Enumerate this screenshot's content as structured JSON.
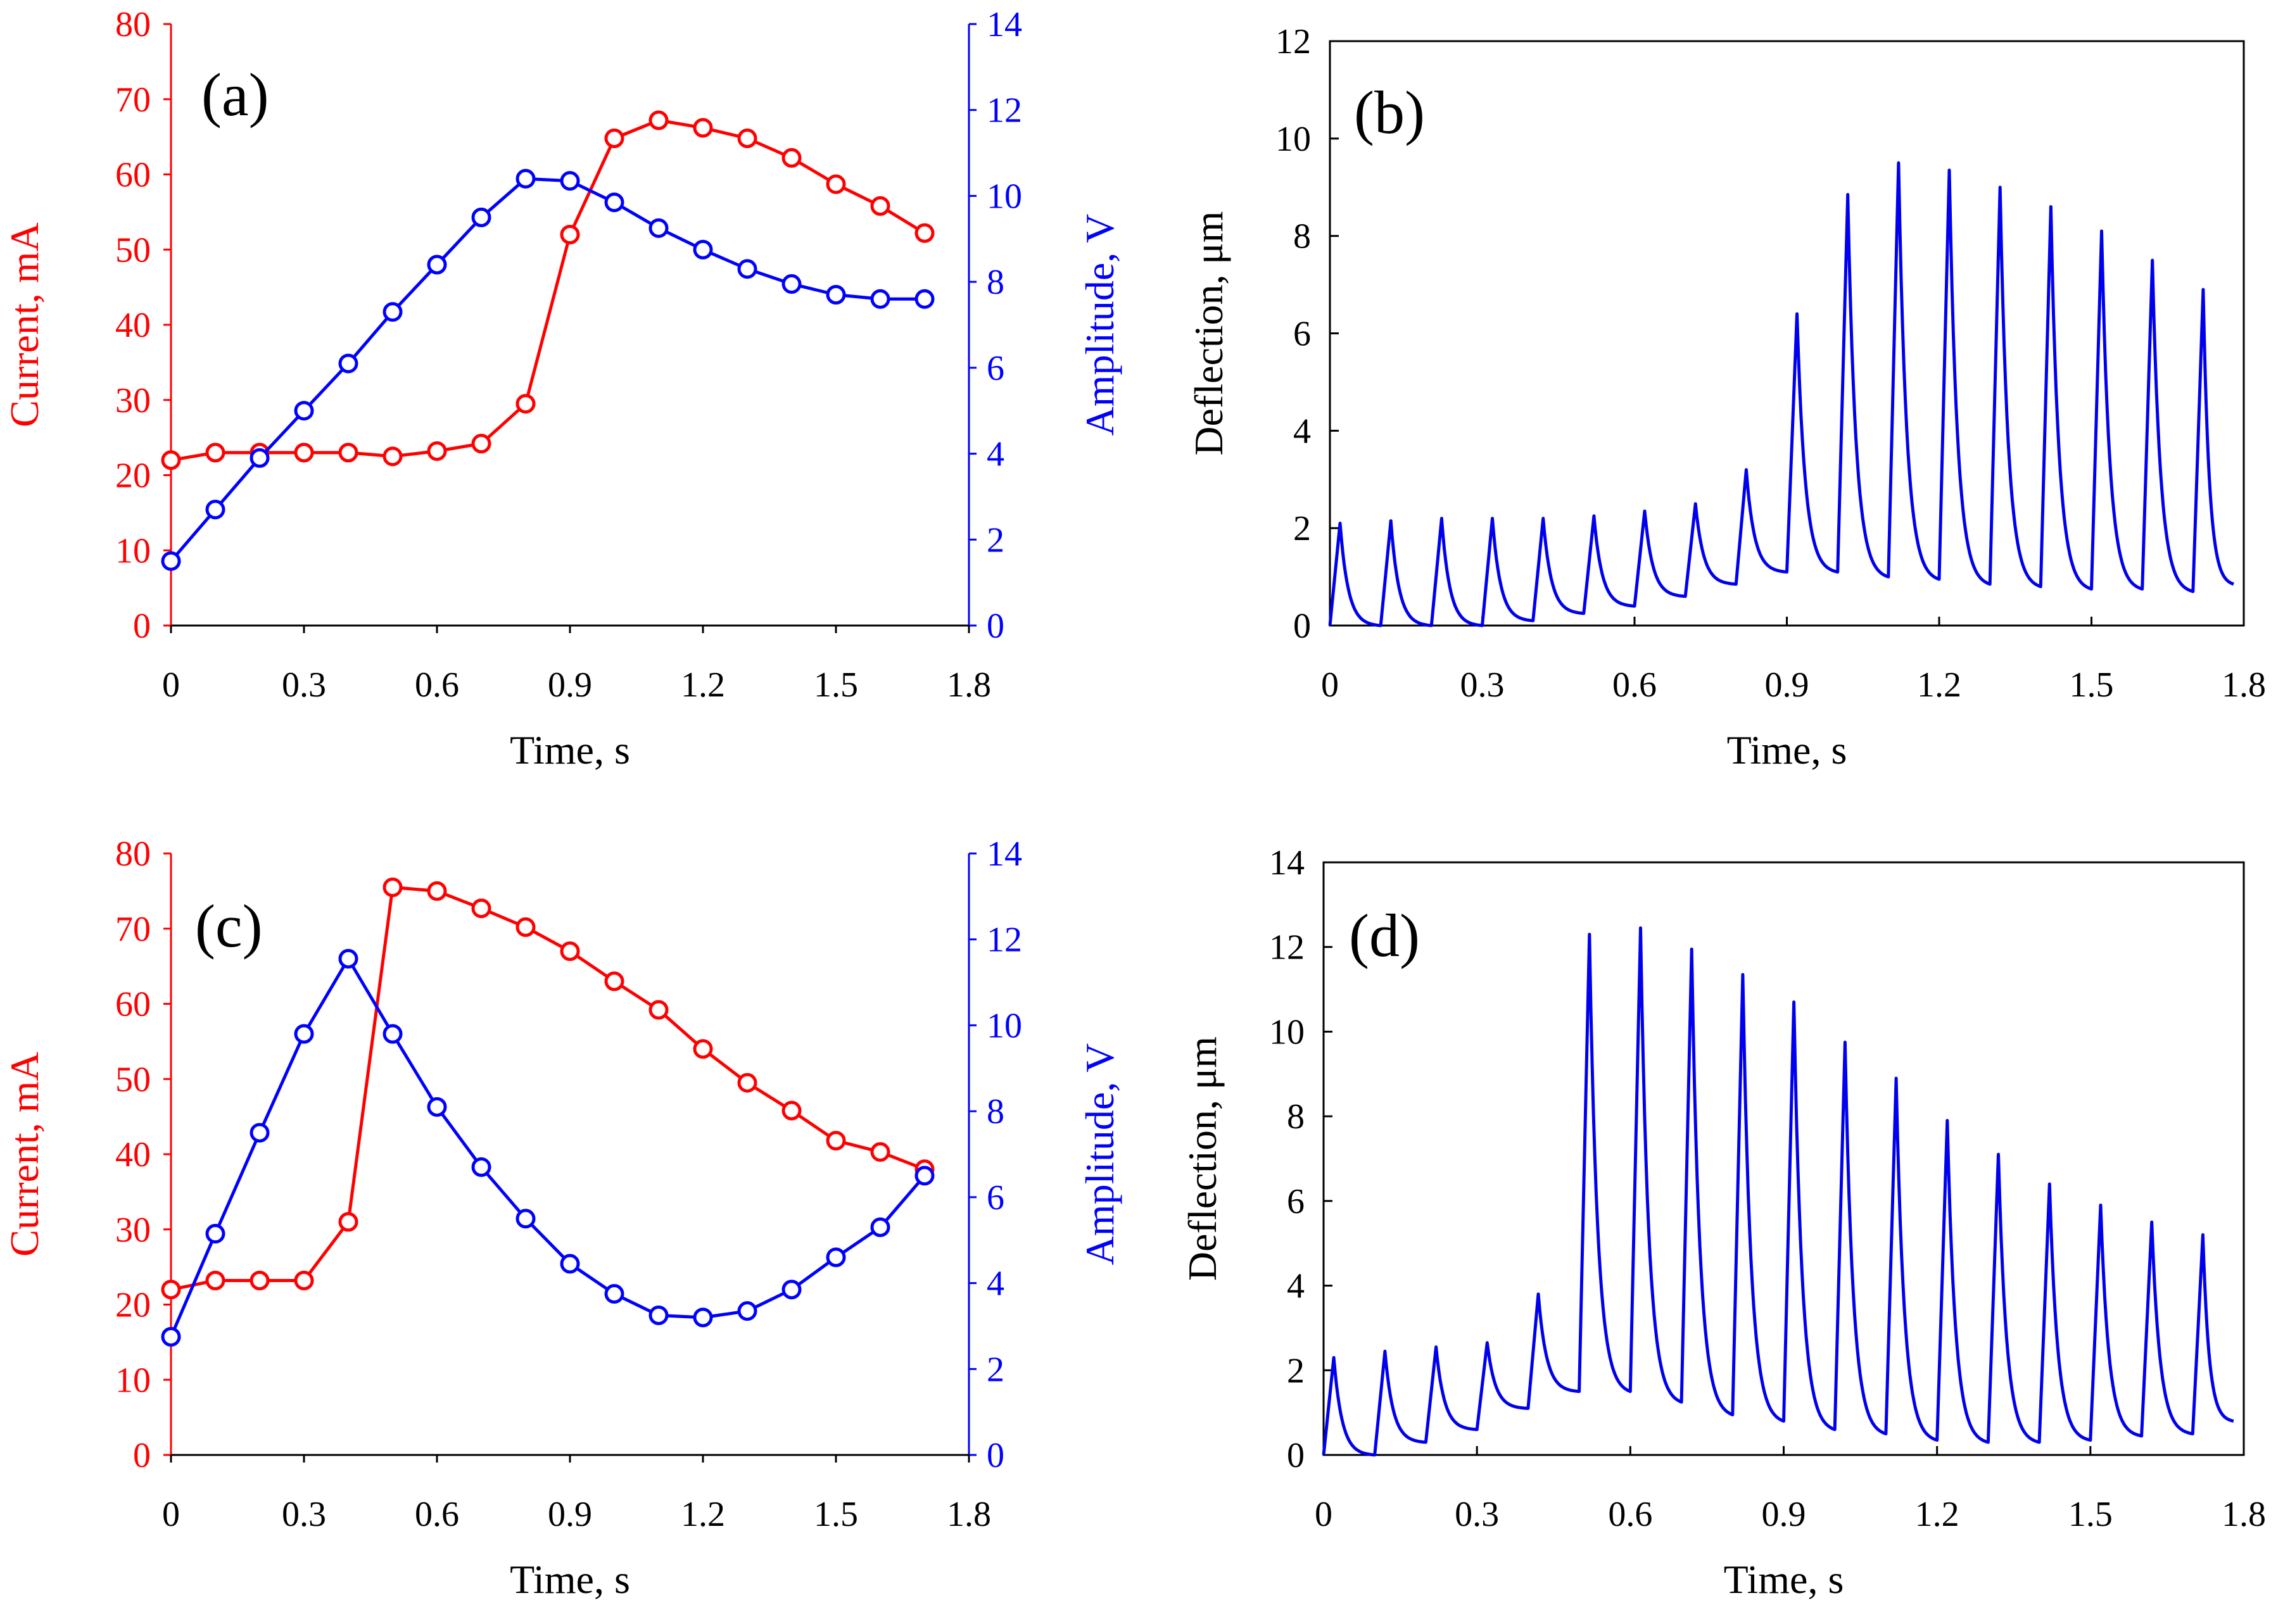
{
  "figure": {
    "panel_labels": [
      "(a)",
      "(b)",
      "(c)",
      "(d)"
    ]
  },
  "colors": {
    "current": "#ff0000",
    "amplitude": "#0000ff",
    "deflection": "#0000ee",
    "axis": "#000000"
  },
  "chart_data": [
    {
      "id": "a",
      "type": "line",
      "title": "(a)",
      "xlabel": "Time, s",
      "ylabel_left": "Current, mA",
      "ylabel_right": "Amplitude, V",
      "xlim": [
        0,
        1.8
      ],
      "ylim_left": [
        0,
        80
      ],
      "ylim_right": [
        0,
        14
      ],
      "x_ticks": [
        "0",
        "0.3",
        "0.6",
        "0.9",
        "1.2",
        "1.5",
        "1.8"
      ],
      "y_left_ticks": [
        "0",
        "10",
        "20",
        "30",
        "40",
        "50",
        "60",
        "70",
        "80"
      ],
      "y_right_ticks": [
        "0",
        "2",
        "4",
        "6",
        "8",
        "10",
        "12",
        "14"
      ],
      "x": [
        0,
        0.1,
        0.2,
        0.3,
        0.4,
        0.5,
        0.6,
        0.7,
        0.8,
        0.9,
        1.0,
        1.1,
        1.2,
        1.3,
        1.4,
        1.5,
        1.6,
        1.7
      ],
      "series": [
        {
          "name": "Current, mA",
          "axis": "left",
          "marker": "circle",
          "values": [
            22,
            23,
            23,
            23,
            23,
            22.5,
            23.2,
            24.2,
            29.5,
            52,
            64.8,
            67.2,
            66.2,
            64.8,
            62.2,
            58.7,
            55.8,
            52.2
          ]
        },
        {
          "name": "Amplitude, V",
          "axis": "right",
          "marker": "circle",
          "values": [
            1.5,
            2.7,
            3.9,
            5.0,
            6.1,
            7.3,
            8.4,
            9.5,
            10.4,
            10.35,
            9.85,
            9.25,
            8.75,
            8.3,
            7.95,
            7.7,
            7.6,
            7.6
          ]
        }
      ]
    },
    {
      "id": "b",
      "type": "line",
      "title": "(b)",
      "xlabel": "Time, s",
      "ylabel": "Deflection, μm",
      "xlim": [
        0,
        1.8
      ],
      "ylim": [
        0,
        12
      ],
      "x_ticks": [
        "0",
        "0.3",
        "0.6",
        "0.9",
        "1.2",
        "1.5",
        "1.8"
      ],
      "y_ticks": [
        "0",
        "2",
        "4",
        "6",
        "8",
        "10",
        "12"
      ],
      "pulse_period": 0.1,
      "rise_time": 0.02,
      "x_end": 1.78,
      "pulses": [
        {
          "start": 0.0,
          "base": 0.0,
          "peak": 2.1,
          "end": 0.0
        },
        {
          "start": 0.1,
          "base": 0.0,
          "peak": 2.15,
          "end": 0.0
        },
        {
          "start": 0.2,
          "base": 0.0,
          "peak": 2.2,
          "end": 0.0
        },
        {
          "start": 0.3,
          "base": 0.0,
          "peak": 2.2,
          "end": 0.1
        },
        {
          "start": 0.4,
          "base": 0.1,
          "peak": 2.2,
          "end": 0.25
        },
        {
          "start": 0.5,
          "base": 0.25,
          "peak": 2.25,
          "end": 0.4
        },
        {
          "start": 0.6,
          "base": 0.4,
          "peak": 2.35,
          "end": 0.6
        },
        {
          "start": 0.7,
          "base": 0.6,
          "peak": 2.5,
          "end": 0.85
        },
        {
          "start": 0.8,
          "base": 0.85,
          "peak": 3.2,
          "end": 1.1
        },
        {
          "start": 0.9,
          "base": 1.1,
          "peak": 6.4,
          "end": 1.1
        },
        {
          "start": 1.0,
          "base": 1.1,
          "peak": 8.85,
          "end": 1.0
        },
        {
          "start": 1.1,
          "base": 1.0,
          "peak": 9.5,
          "end": 0.95
        },
        {
          "start": 1.2,
          "base": 0.95,
          "peak": 9.35,
          "end": 0.85
        },
        {
          "start": 1.3,
          "base": 0.85,
          "peak": 9.0,
          "end": 0.8
        },
        {
          "start": 1.4,
          "base": 0.8,
          "peak": 8.6,
          "end": 0.75
        },
        {
          "start": 1.5,
          "base": 0.75,
          "peak": 8.1,
          "end": 0.75
        },
        {
          "start": 1.6,
          "base": 0.75,
          "peak": 7.5,
          "end": 0.7
        },
        {
          "start": 1.7,
          "base": 0.7,
          "peak": 6.9,
          "end": 0.85
        }
      ]
    },
    {
      "id": "c",
      "type": "line",
      "title": "(c)",
      "xlabel": "Time, s",
      "ylabel_left": "Current, mA",
      "ylabel_right": "Amplitude, V",
      "xlim": [
        0,
        1.8
      ],
      "ylim_left": [
        0,
        80
      ],
      "ylim_right": [
        0,
        14
      ],
      "x_ticks": [
        "0",
        "0.3",
        "0.6",
        "0.9",
        "1.2",
        "1.5",
        "1.8"
      ],
      "y_left_ticks": [
        "0",
        "10",
        "20",
        "30",
        "40",
        "50",
        "60",
        "70",
        "80"
      ],
      "y_right_ticks": [
        "0",
        "2",
        "4",
        "6",
        "8",
        "10",
        "12",
        "14"
      ],
      "x": [
        0,
        0.1,
        0.2,
        0.3,
        0.4,
        0.5,
        0.6,
        0.7,
        0.8,
        0.9,
        1.0,
        1.1,
        1.2,
        1.3,
        1.4,
        1.5,
        1.6,
        1.7
      ],
      "series": [
        {
          "name": "Current, mA",
          "axis": "left",
          "marker": "circle",
          "values": [
            22,
            23.2,
            23.2,
            23.2,
            31,
            75.5,
            75,
            72.7,
            70.2,
            67,
            63,
            59.2,
            54,
            49.5,
            45.8,
            41.8,
            40.3,
            38
          ]
        },
        {
          "name": "Amplitude, V",
          "axis": "right",
          "marker": "circle",
          "values": [
            2.75,
            5.15,
            7.5,
            9.8,
            11.55,
            9.8,
            8.1,
            6.7,
            5.5,
            4.45,
            3.75,
            3.25,
            3.2,
            3.35,
            3.85,
            4.6,
            5.3,
            6.5
          ]
        }
      ]
    },
    {
      "id": "d",
      "type": "line",
      "title": "(d)",
      "xlabel": "Time, s",
      "ylabel": "Deflection, μm",
      "xlim": [
        0,
        1.8
      ],
      "ylim": [
        0,
        14
      ],
      "x_ticks": [
        "0",
        "0.3",
        "0.6",
        "0.9",
        "1.2",
        "1.5",
        "1.8"
      ],
      "y_ticks": [
        "0",
        "2",
        "4",
        "6",
        "8",
        "10",
        "12",
        "14"
      ],
      "pulse_period": 0.1,
      "rise_time": 0.02,
      "x_end": 1.78,
      "pulses": [
        {
          "start": 0.0,
          "base": 0.0,
          "peak": 2.3,
          "end": 0.0
        },
        {
          "start": 0.1,
          "base": 0.0,
          "peak": 2.45,
          "end": 0.3
        },
        {
          "start": 0.2,
          "base": 0.3,
          "peak": 2.55,
          "end": 0.6
        },
        {
          "start": 0.3,
          "base": 0.6,
          "peak": 2.65,
          "end": 1.1
        },
        {
          "start": 0.4,
          "base": 1.1,
          "peak": 3.8,
          "end": 1.5
        },
        {
          "start": 0.5,
          "base": 1.5,
          "peak": 12.3,
          "end": 1.5
        },
        {
          "start": 0.6,
          "base": 1.5,
          "peak": 12.45,
          "end": 1.25
        },
        {
          "start": 0.7,
          "base": 1.25,
          "peak": 11.95,
          "end": 0.95
        },
        {
          "start": 0.8,
          "base": 0.95,
          "peak": 11.35,
          "end": 0.8
        },
        {
          "start": 0.9,
          "base": 0.8,
          "peak": 10.7,
          "end": 0.6
        },
        {
          "start": 1.0,
          "base": 0.6,
          "peak": 9.75,
          "end": 0.5
        },
        {
          "start": 1.1,
          "base": 0.5,
          "peak": 8.9,
          "end": 0.35
        },
        {
          "start": 1.2,
          "base": 0.35,
          "peak": 7.9,
          "end": 0.3
        },
        {
          "start": 1.3,
          "base": 0.3,
          "peak": 7.1,
          "end": 0.3
        },
        {
          "start": 1.4,
          "base": 0.3,
          "peak": 6.4,
          "end": 0.35
        },
        {
          "start": 1.5,
          "base": 0.35,
          "peak": 5.9,
          "end": 0.45
        },
        {
          "start": 1.6,
          "base": 0.45,
          "peak": 5.5,
          "end": 0.5
        },
        {
          "start": 1.7,
          "base": 0.5,
          "peak": 5.2,
          "end": 0.8
        }
      ]
    }
  ]
}
